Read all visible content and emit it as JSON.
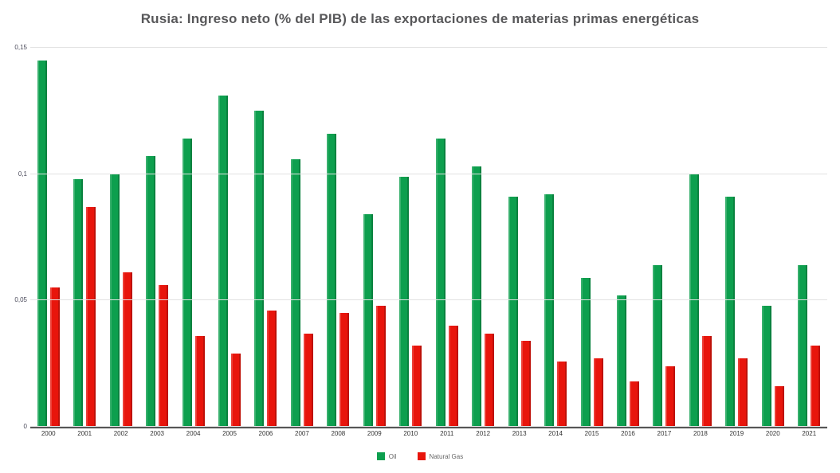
{
  "title": "Rusia: Ingreso neto (% del PIB) de las exportaciones de materias primas energéticas",
  "chart_data": {
    "type": "bar",
    "title": "Rusia: Ingreso neto (% del PIB) de las exportaciones de materias primas energéticas",
    "xlabel": "",
    "ylabel": "",
    "ylim": [
      0,
      0.15
    ],
    "grid": true,
    "legend_position": "bottom",
    "categories": [
      "2000",
      "2001",
      "2002",
      "2003",
      "2004",
      "2005",
      "2006",
      "2007",
      "2008",
      "2009",
      "2010",
      "2011",
      "2012",
      "2013",
      "2014",
      "2015",
      "2016",
      "2017",
      "2018",
      "2019",
      "2020",
      "2021"
    ],
    "yticks": [
      {
        "value": 0,
        "label": "0"
      },
      {
        "value": 0.05,
        "label": "0,05"
      },
      {
        "value": 0.1,
        "label": "0,1"
      },
      {
        "value": 0.15,
        "label": "0,15"
      }
    ],
    "series": [
      {
        "name": "Oil",
        "color": "#0d9f4e",
        "values": [
          0.145,
          0.098,
          0.1,
          0.107,
          0.114,
          0.131,
          0.125,
          0.106,
          0.116,
          0.084,
          0.099,
          0.114,
          0.103,
          0.091,
          0.092,
          0.059,
          0.052,
          0.064,
          0.1,
          0.091,
          0.048,
          0.064
        ]
      },
      {
        "name": "Natural Gas",
        "color": "#e8150c",
        "values": [
          0.055,
          0.087,
          0.061,
          0.056,
          0.036,
          0.029,
          0.046,
          0.037,
          0.045,
          0.048,
          0.032,
          0.04,
          0.037,
          0.034,
          0.026,
          0.027,
          0.018,
          0.024,
          0.036,
          0.027,
          0.016,
          0.032
        ]
      }
    ]
  }
}
